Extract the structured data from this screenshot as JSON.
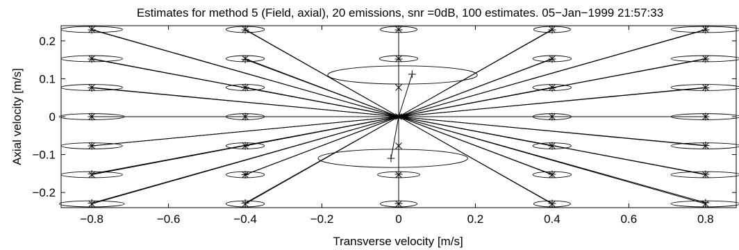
{
  "chart_data": {
    "type": "scatter",
    "title": "Estimates for method 5 (Field, axial), 20 emissions, snr =0dB, 100 estimates. 05−Jan−1999 21:57:33",
    "xlabel": "Transverse velocity [m/s]",
    "ylabel": "Axial velocity [m/s]",
    "xlim": [
      -0.88,
      0.88
    ],
    "ylim": [
      -0.24,
      0.24
    ],
    "xticks": [
      -0.8,
      -0.6,
      -0.4,
      -0.2,
      0,
      0.2,
      0.4,
      0.6,
      0.8
    ],
    "xtick_labels": [
      "−0.8",
      "−0.6",
      "−0.4",
      "−0.2",
      "0",
      "0.2",
      "0.4",
      "0.6",
      "0.8"
    ],
    "yticks": [
      -0.2,
      -0.1,
      0,
      0.1,
      0.2
    ],
    "ytick_labels": [
      "−0.2",
      "−0.1",
      "0",
      "0.1",
      "0.2"
    ],
    "grid": false,
    "series": [
      {
        "marker": "x",
        "points": [
          {
            "x": -0.8,
            "y": 0.23
          },
          {
            "x": -0.8,
            "y": 0.153
          },
          {
            "x": -0.8,
            "y": 0.077
          },
          {
            "x": -0.8,
            "y": 0
          },
          {
            "x": -0.8,
            "y": -0.077
          },
          {
            "x": -0.8,
            "y": -0.153
          },
          {
            "x": -0.8,
            "y": -0.23
          },
          {
            "x": -0.4,
            "y": 0.23
          },
          {
            "x": -0.4,
            "y": 0.153
          },
          {
            "x": -0.4,
            "y": 0.077
          },
          {
            "x": -0.4,
            "y": 0
          },
          {
            "x": -0.4,
            "y": -0.077
          },
          {
            "x": -0.4,
            "y": -0.153
          },
          {
            "x": -0.4,
            "y": -0.23
          },
          {
            "x": 0,
            "y": 0.23
          },
          {
            "x": 0,
            "y": 0.153
          },
          {
            "x": 0,
            "y": 0.077
          },
          {
            "x": 0,
            "y": 0
          },
          {
            "x": 0,
            "y": -0.077
          },
          {
            "x": 0,
            "y": -0.153
          },
          {
            "x": 0,
            "y": -0.23
          },
          {
            "x": 0.4,
            "y": 0.23
          },
          {
            "x": 0.4,
            "y": 0.153
          },
          {
            "x": 0.4,
            "y": 0.077
          },
          {
            "x": 0.4,
            "y": 0
          },
          {
            "x": 0.4,
            "y": -0.077
          },
          {
            "x": 0.4,
            "y": -0.153
          },
          {
            "x": 0.4,
            "y": -0.23
          },
          {
            "x": 0.8,
            "y": 0.23
          },
          {
            "x": 0.8,
            "y": 0.153
          },
          {
            "x": 0.8,
            "y": 0.077
          },
          {
            "x": 0.8,
            "y": 0
          },
          {
            "x": 0.8,
            "y": -0.077
          },
          {
            "x": 0.8,
            "y": -0.153
          },
          {
            "x": 0.8,
            "y": -0.23
          }
        ]
      },
      {
        "marker": "+",
        "points": [
          {
            "x": -0.8,
            "y": 0.229
          },
          {
            "x": -0.8,
            "y": 0.152
          },
          {
            "x": -0.8,
            "y": 0.076
          },
          {
            "x": -0.8,
            "y": 0
          },
          {
            "x": -0.8,
            "y": -0.077
          },
          {
            "x": -0.8,
            "y": -0.151
          },
          {
            "x": -0.8,
            "y": -0.228
          },
          {
            "x": -0.4,
            "y": 0.229
          },
          {
            "x": -0.4,
            "y": 0.151
          },
          {
            "x": -0.4,
            "y": 0.077
          },
          {
            "x": -0.4,
            "y": 0
          },
          {
            "x": -0.4,
            "y": -0.077
          },
          {
            "x": -0.4,
            "y": -0.153
          },
          {
            "x": -0.4,
            "y": -0.228
          },
          {
            "x": 0,
            "y": 0.229
          },
          {
            "x": 0,
            "y": 0.152
          },
          {
            "x": 0.035,
            "y": 0.112
          },
          {
            "x": 0,
            "y": 0
          },
          {
            "x": -0.02,
            "y": -0.11
          },
          {
            "x": 0,
            "y": -0.152
          },
          {
            "x": 0,
            "y": -0.229
          },
          {
            "x": 0.4,
            "y": 0.229
          },
          {
            "x": 0.4,
            "y": 0.152
          },
          {
            "x": 0.4,
            "y": 0.076
          },
          {
            "x": 0.4,
            "y": 0
          },
          {
            "x": 0.4,
            "y": -0.077
          },
          {
            "x": 0.4,
            "y": -0.152
          },
          {
            "x": 0.4,
            "y": -0.229
          },
          {
            "x": 0.8,
            "y": 0.229
          },
          {
            "x": 0.8,
            "y": 0.152
          },
          {
            "x": 0.8,
            "y": 0.076
          },
          {
            "x": 0.8,
            "y": 0
          },
          {
            "x": 0.8,
            "y": -0.076
          },
          {
            "x": 0.8,
            "y": -0.152
          },
          {
            "x": 0.8,
            "y": -0.227
          }
        ]
      }
    ],
    "ellipses": [
      {
        "cx": -0.8,
        "cy": 0.23,
        "rx": 0.08,
        "ry": 0.008
      },
      {
        "cx": -0.8,
        "cy": 0.153,
        "rx": 0.08,
        "ry": 0.008
      },
      {
        "cx": -0.8,
        "cy": 0.077,
        "rx": 0.08,
        "ry": 0.008
      },
      {
        "cx": -0.8,
        "cy": 0,
        "rx": 0.085,
        "ry": 0.008
      },
      {
        "cx": -0.8,
        "cy": -0.077,
        "rx": 0.08,
        "ry": 0.008
      },
      {
        "cx": -0.8,
        "cy": -0.153,
        "rx": 0.08,
        "ry": 0.008
      },
      {
        "cx": -0.8,
        "cy": -0.23,
        "rx": 0.085,
        "ry": 0.008
      },
      {
        "cx": -0.4,
        "cy": 0.23,
        "rx": 0.05,
        "ry": 0.008
      },
      {
        "cx": -0.4,
        "cy": 0.153,
        "rx": 0.05,
        "ry": 0.008
      },
      {
        "cx": -0.4,
        "cy": 0.077,
        "rx": 0.05,
        "ry": 0.008
      },
      {
        "cx": -0.4,
        "cy": 0,
        "rx": 0.05,
        "ry": 0.008
      },
      {
        "cx": -0.4,
        "cy": -0.077,
        "rx": 0.05,
        "ry": 0.008
      },
      {
        "cx": -0.4,
        "cy": -0.153,
        "rx": 0.05,
        "ry": 0.008
      },
      {
        "cx": -0.4,
        "cy": -0.23,
        "rx": 0.05,
        "ry": 0.008
      },
      {
        "cx": 0,
        "cy": 0.23,
        "rx": 0.048,
        "ry": 0.008
      },
      {
        "cx": 0,
        "cy": 0.153,
        "rx": 0.05,
        "ry": 0.008
      },
      {
        "cx": 0.01,
        "cy": 0.11,
        "rx": 0.195,
        "ry": 0.024
      },
      {
        "cx": 0,
        "cy": 0,
        "rx": 0.015,
        "ry": 0.005
      },
      {
        "cx": -0.015,
        "cy": -0.11,
        "rx": 0.195,
        "ry": 0.024
      },
      {
        "cx": 0,
        "cy": -0.153,
        "rx": 0.055,
        "ry": 0.008
      },
      {
        "cx": 0,
        "cy": -0.23,
        "rx": 0.048,
        "ry": 0.008
      },
      {
        "cx": 0.4,
        "cy": 0.23,
        "rx": 0.048,
        "ry": 0.008
      },
      {
        "cx": 0.4,
        "cy": 0.153,
        "rx": 0.05,
        "ry": 0.008
      },
      {
        "cx": 0.4,
        "cy": 0.077,
        "rx": 0.05,
        "ry": 0.008
      },
      {
        "cx": 0.4,
        "cy": 0,
        "rx": 0.05,
        "ry": 0.008
      },
      {
        "cx": 0.4,
        "cy": -0.077,
        "rx": 0.05,
        "ry": 0.008
      },
      {
        "cx": 0.4,
        "cy": -0.153,
        "rx": 0.05,
        "ry": 0.008
      },
      {
        "cx": 0.4,
        "cy": -0.23,
        "rx": 0.048,
        "ry": 0.008
      },
      {
        "cx": 0.8,
        "cy": 0.23,
        "rx": 0.09,
        "ry": 0.008
      },
      {
        "cx": 0.8,
        "cy": 0.153,
        "rx": 0.09,
        "ry": 0.008
      },
      {
        "cx": 0.8,
        "cy": 0.077,
        "rx": 0.09,
        "ry": 0.008
      },
      {
        "cx": 0.8,
        "cy": 0,
        "rx": 0.09,
        "ry": 0.008
      },
      {
        "cx": 0.8,
        "cy": -0.077,
        "rx": 0.09,
        "ry": 0.008
      },
      {
        "cx": 0.8,
        "cy": -0.153,
        "rx": 0.09,
        "ry": 0.008
      },
      {
        "cx": 0.8,
        "cy": -0.23,
        "rx": 0.09,
        "ry": 0.008
      }
    ],
    "lines_origin": [
      0,
      0
    ]
  }
}
